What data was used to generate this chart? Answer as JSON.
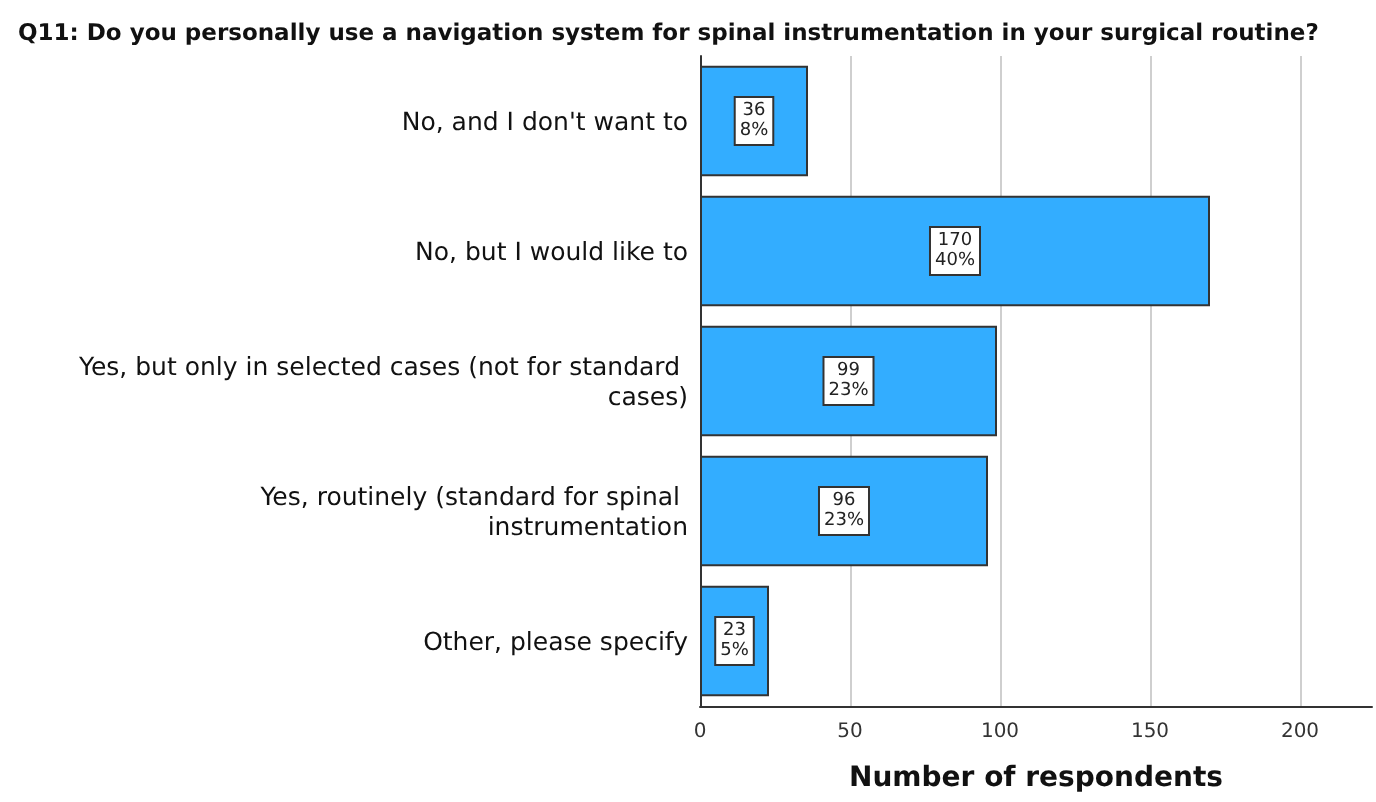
{
  "chart_data": {
    "type": "bar",
    "orientation": "horizontal",
    "title": "Q11: Do you personally use a navigation system for spinal instrumentation in your surgical routine?",
    "xlabel": "Number of respondents",
    "categories": [
      "No, and I don't want to",
      "No, but I would like to",
      "Yes, but only in selected cases (not for standard cases)",
      "Yes, routinely (standard for spinal instrumentation",
      "Other, please specify"
    ],
    "values": [
      36,
      170,
      99,
      96,
      23
    ],
    "value_labels": [
      "36\n8%",
      "170\n40%",
      "99\n23%",
      "96\n23%",
      "23\n5%"
    ],
    "color": "#33adff",
    "xlim": [
      0,
      224
    ],
    "xticks": [
      0,
      50,
      100,
      150,
      200
    ],
    "grid": "x"
  }
}
